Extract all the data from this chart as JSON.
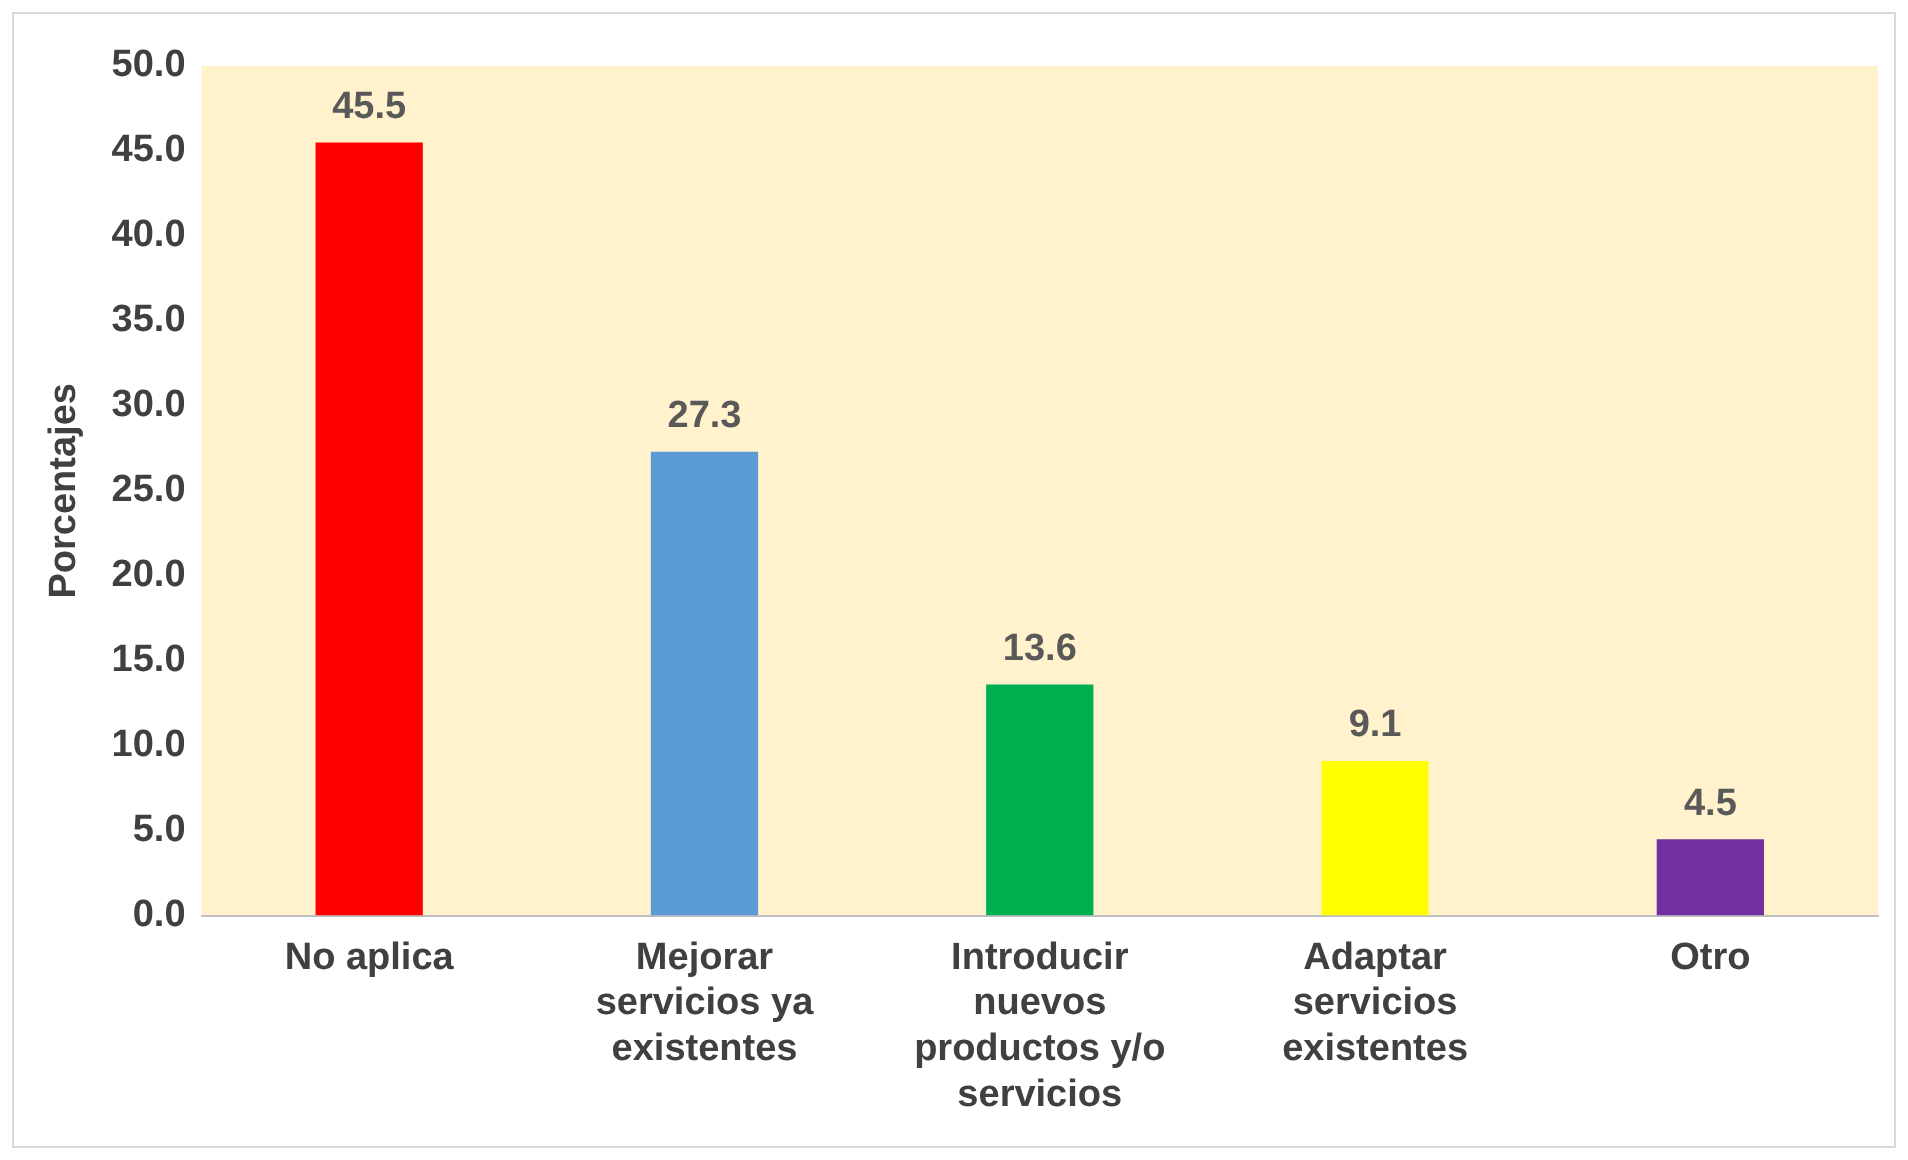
{
  "chart_data": {
    "type": "bar",
    "ylabel": "Porcentajes",
    "categories": [
      "No aplica",
      "Mejorar servicios ya existentes",
      "Introducir nuevos productos y/o servicios",
      "Adaptar servicios existentes",
      "Otro"
    ],
    "values": [
      45.5,
      27.3,
      13.6,
      9.1,
      4.5
    ],
    "colors": [
      "#ff0000",
      "#5b9bd5",
      "#00b050",
      "#ffff00",
      "#7030a0"
    ],
    "ylim": [
      0,
      50
    ],
    "yticks": [
      {
        "value": 0,
        "label": "0.0"
      },
      {
        "value": 5,
        "label": "5.0"
      },
      {
        "value": 10,
        "label": "10.0"
      },
      {
        "value": 15,
        "label": "15.0"
      },
      {
        "value": 20,
        "label": "20.0"
      },
      {
        "value": 25,
        "label": "25.0"
      },
      {
        "value": 30,
        "label": "30.0"
      },
      {
        "value": 35,
        "label": "35.0"
      },
      {
        "value": 40,
        "label": "40.0"
      },
      {
        "value": 45,
        "label": "45.0"
      },
      {
        "value": 50,
        "label": "50.0"
      }
    ],
    "data_labels": true,
    "grid": false,
    "legend": false
  }
}
